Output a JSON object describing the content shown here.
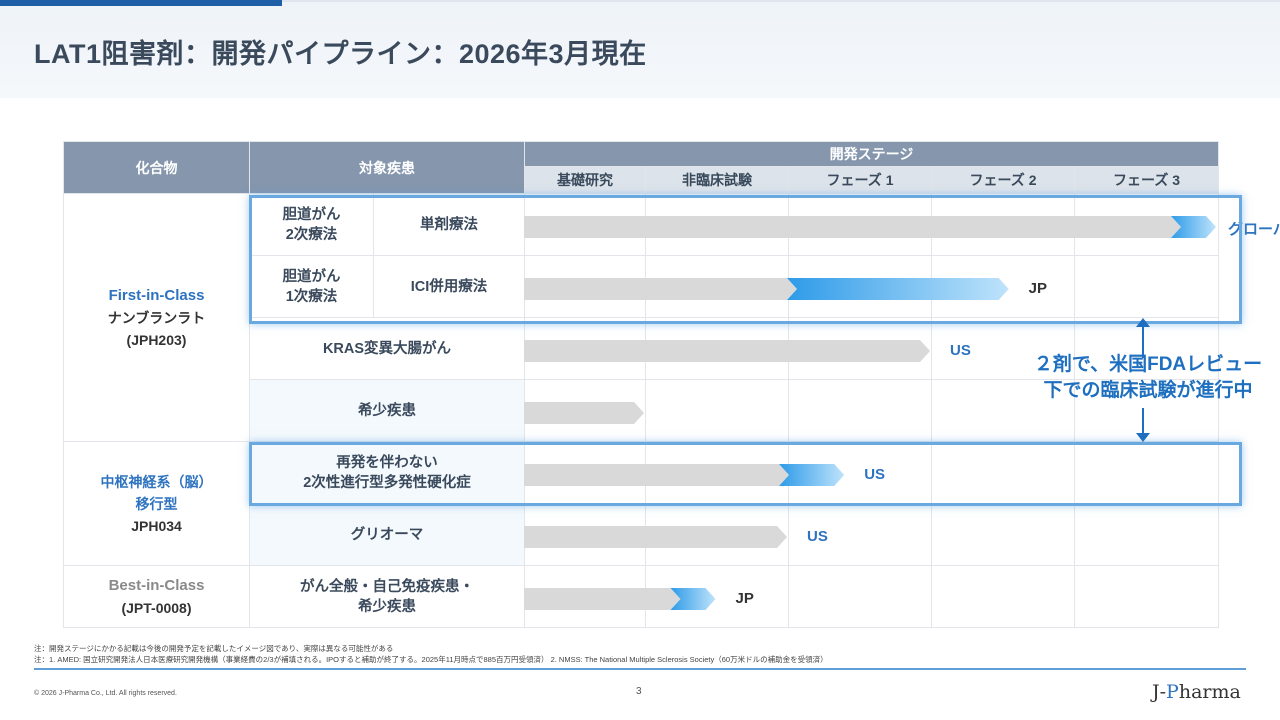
{
  "title": "LAT1阻害剤：開発パイプライン：2026年3月現在",
  "table": {
    "col_compound": "化合物",
    "col_target": "対象疾患",
    "col_stage": "開発ステージ",
    "stages": [
      "基礎研究",
      "非臨床試験",
      "フェーズ 1",
      "フェーズ 2",
      "フェーズ 3"
    ]
  },
  "compounds": [
    {
      "class_label": "First-in-Class",
      "name": "ナンブランラト",
      "code": "(JPH203)"
    },
    {
      "class_label": "中枢神経系（脳）",
      "class_label2": "移行型",
      "code": "JPH034"
    },
    {
      "class_label": "Best-in-Class",
      "code": "(JPT-0008)"
    }
  ],
  "rows": [
    {
      "disease": "胆道がん",
      "disease2": "2次療法",
      "therapy": "単剤療法",
      "progress_stage": 5.0,
      "region": "グローバル"
    },
    {
      "disease": "胆道がん",
      "disease2": "1次療法",
      "therapy": "ICI併用療法",
      "progress_stage": 3.55,
      "region": "JP"
    },
    {
      "disease": "KRAS変異大腸がん",
      "progress_stage": 3.0,
      "region": "US"
    },
    {
      "disease": "希少疾患",
      "progress_stage": 1.0,
      "region": ""
    },
    {
      "disease": "再発を伴わない",
      "disease2": "2次性進行型多発性硬化症",
      "progress_stage": 2.4,
      "region": "US"
    },
    {
      "disease": "グリオーマ",
      "progress_stage": 2.0,
      "region": "US"
    },
    {
      "disease": "がん全般・自己免疫疾患・",
      "disease2": "希少疾患",
      "progress_stage": 1.5,
      "region": "JP"
    }
  ],
  "callout": {
    "line1": "２剤で、米国FDAレビュー",
    "line2": "下での臨床試験が進行中"
  },
  "notes": {
    "note1": "注：開発ステージにかかる記載は今後の開発予定を記載したイメージ図であり、実際は異なる可能性がある",
    "note2": "注：1. AMED: 国立研究開発法人日本医療研究開発機構（事業経費の2/3が補填される。IPOすると補助が終了する。2025年11月時点で885百万円受領済） 2. NMSS: The National Multiple Sclerosis Society（60万米ドルの補助金を受領済）"
  },
  "footer": {
    "copyright": "© 2026 J-Pharma Co., Ltd. All rights reserved.",
    "page": "3",
    "logo_pre": "J-",
    "logo_p": "P",
    "logo_post": "harma"
  },
  "colors": {
    "bar_gray": "#d9d9d9",
    "bar_blue_start": "#2e9be8",
    "bar_blue_end": "#bfe3fb",
    "accent": "#2e73c0"
  }
}
